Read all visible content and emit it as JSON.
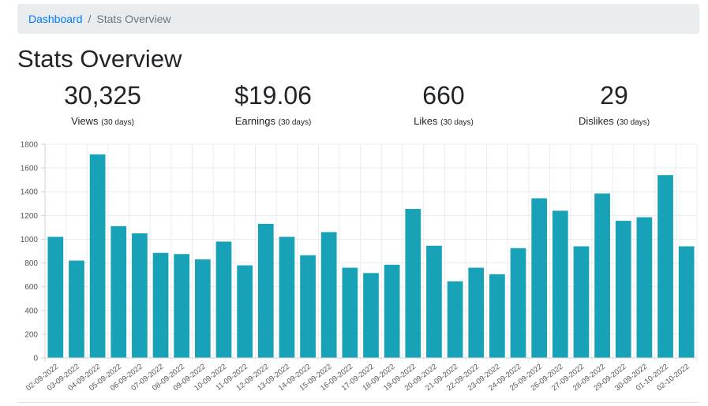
{
  "breadcrumb": {
    "home": "Dashboard",
    "separator": "/",
    "current": "Stats Overview"
  },
  "page": {
    "title": "Stats Overview"
  },
  "stats": [
    {
      "value": "30,325",
      "label": "Views",
      "period": "(30 days)"
    },
    {
      "value": "$19.06",
      "label": "Earnings",
      "period": "(30 days)"
    },
    {
      "value": "660",
      "label": "Likes",
      "period": "(30 days)"
    },
    {
      "value": "29",
      "label": "Dislikes",
      "period": "(30 days)"
    }
  ],
  "colors": {
    "bar": "#17a2b8",
    "link": "#007bff",
    "grid": "#e9ecef"
  },
  "chart_data": {
    "type": "bar",
    "categories": [
      "02-09-2022",
      "03-09-2022",
      "04-09-2022",
      "05-09-2022",
      "06-09-2022",
      "07-09-2022",
      "08-09-2022",
      "09-09-2022",
      "10-09-2022",
      "11-09-2022",
      "12-09-2022",
      "13-09-2022",
      "14-09-2022",
      "15-09-2022",
      "16-09-2022",
      "17-09-2022",
      "18-09-2022",
      "19-09-2022",
      "20-09-2022",
      "21-09-2022",
      "22-09-2022",
      "23-09-2022",
      "24-09-2022",
      "25-09-2022",
      "26-09-2022",
      "27-09-2022",
      "28-09-2022",
      "29-09-2022",
      "30-09-2022",
      "01-10-2022",
      "02-10-2022"
    ],
    "values": [
      1020,
      820,
      1715,
      1110,
      1050,
      885,
      875,
      830,
      980,
      780,
      1130,
      1020,
      865,
      1060,
      760,
      715,
      785,
      1255,
      945,
      645,
      760,
      705,
      925,
      1345,
      1240,
      940,
      1385,
      1155,
      1185,
      1540,
      940
    ],
    "ylim": [
      0,
      1800
    ],
    "yticks": [
      0,
      200,
      400,
      600,
      800,
      1000,
      1200,
      1400,
      1600,
      1800
    ],
    "ytick_labels": [
      "0",
      "200",
      "400",
      "600",
      "800",
      "1000",
      "1200",
      "1400",
      "1600",
      "1800"
    ],
    "grid": true,
    "legend": false,
    "title": "",
    "xlabel": "",
    "ylabel": ""
  }
}
